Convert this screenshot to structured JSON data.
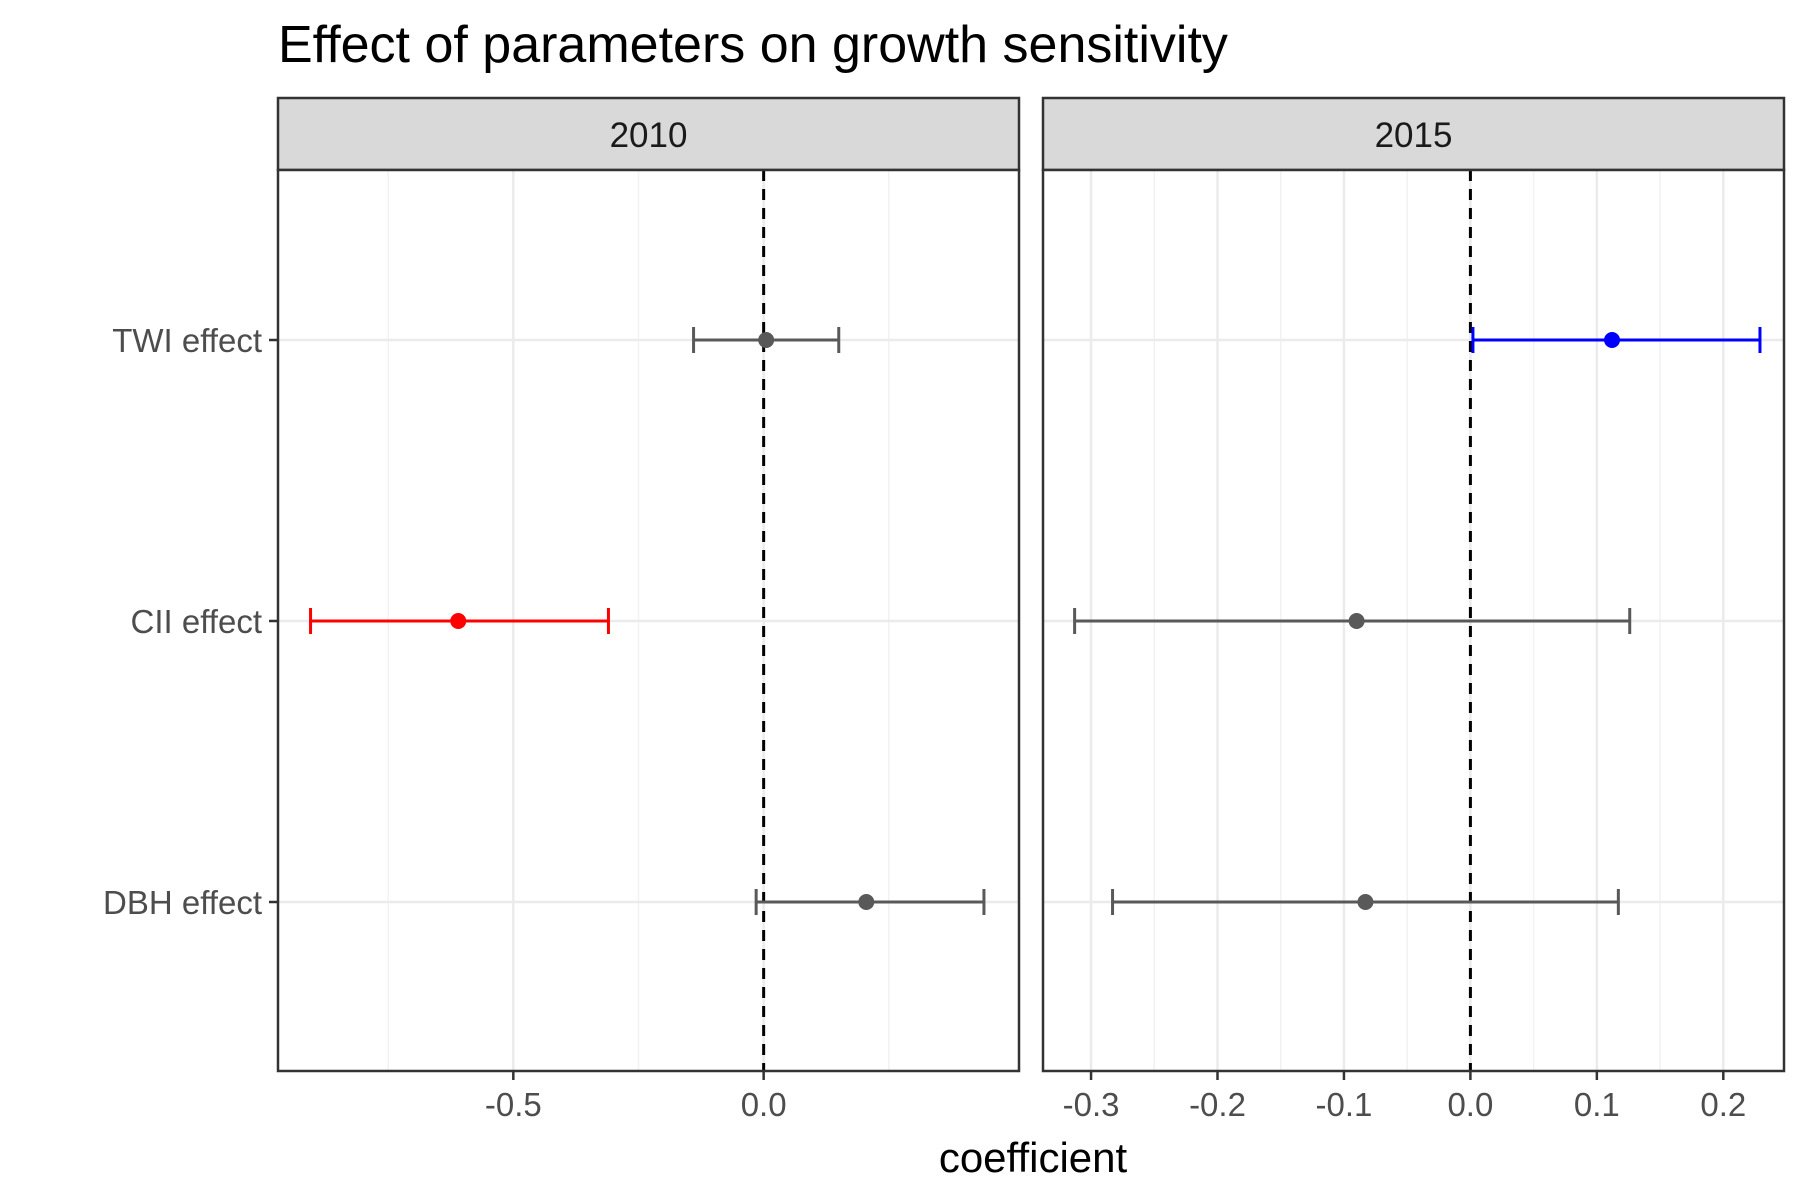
{
  "chart_data": {
    "type": "scatter",
    "title": "Effect of parameters on growth sensitivity",
    "xlabel": "coefficient",
    "ylabel": "",
    "grid": true,
    "categories": [
      "TWI effect",
      "CII effect",
      "DBH effect"
    ],
    "reference_line": {
      "x": 0,
      "style": "dashed",
      "color": "#000000"
    },
    "colors": {
      "neutral": "#595959",
      "negative": "#ff0000",
      "positive": "#0000ff"
    },
    "panels": [
      {
        "label": "2010",
        "xlim": [
          -0.97,
          0.51
        ],
        "xticks": [
          -0.5,
          0.0
        ],
        "xtick_labels": [
          "-0.5",
          "0.0"
        ],
        "points": [
          {
            "category": "TWI effect",
            "estimate": 0.005,
            "lower": -0.14,
            "upper": 0.15,
            "color": "neutral"
          },
          {
            "category": "CII effect",
            "estimate": -0.61,
            "lower": -0.905,
            "upper": -0.31,
            "color": "negative"
          },
          {
            "category": "DBH effect",
            "estimate": 0.205,
            "lower": -0.015,
            "upper": 0.44,
            "color": "neutral"
          }
        ]
      },
      {
        "label": "2015",
        "xlim": [
          -0.338,
          0.248
        ],
        "xticks": [
          -0.3,
          -0.2,
          -0.1,
          0.0,
          0.1,
          0.2
        ],
        "xtick_labels": [
          "-0.3",
          "-0.2",
          "-0.1",
          "0.0",
          "0.1",
          "0.2"
        ],
        "points": [
          {
            "category": "TWI effect",
            "estimate": 0.112,
            "lower": 0.002,
            "upper": 0.229,
            "color": "positive"
          },
          {
            "category": "CII effect",
            "estimate": -0.09,
            "lower": -0.313,
            "upper": 0.126,
            "color": "neutral"
          },
          {
            "category": "DBH effect",
            "estimate": -0.083,
            "lower": -0.283,
            "upper": 0.117,
            "color": "neutral"
          }
        ]
      }
    ]
  }
}
